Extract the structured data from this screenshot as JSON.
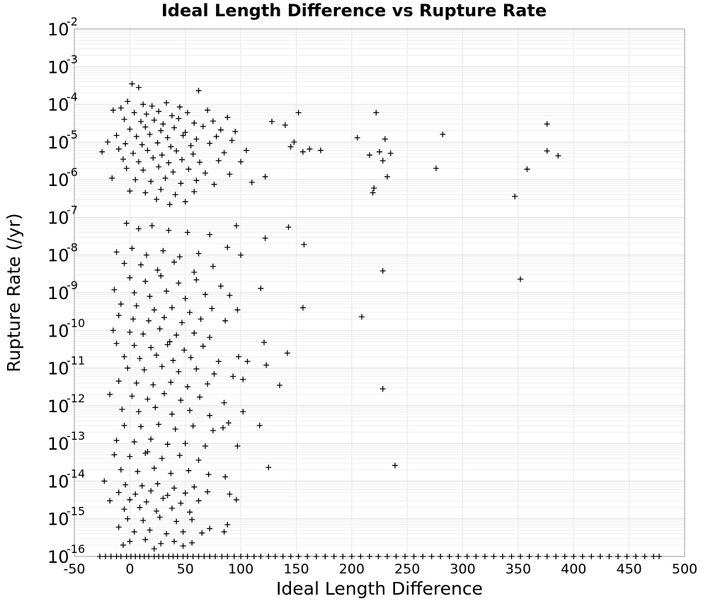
{
  "chart_data": {
    "type": "scatter",
    "title": "Ideal Length Difference vs Rupture Rate",
    "xlabel": "Ideal Length Difference",
    "ylabel": "Rupture Rate (/yr)",
    "xlim": [
      -50,
      500
    ],
    "ylim_log10": [
      -16,
      -2
    ],
    "y_scale": "log",
    "grid": true,
    "marker": "+",
    "xticks": [
      "-50",
      "0",
      "50",
      "100",
      "150",
      "200",
      "250",
      "300",
      "350",
      "400",
      "450",
      "500"
    ],
    "yticks": [
      {
        "base": "10",
        "exp": "-2"
      },
      {
        "base": "10",
        "exp": "-3"
      },
      {
        "base": "10",
        "exp": "-4"
      },
      {
        "base": "10",
        "exp": "-5"
      },
      {
        "base": "10",
        "exp": "-6"
      },
      {
        "base": "10",
        "exp": "-7"
      },
      {
        "base": "10",
        "exp": "-8"
      },
      {
        "base": "10",
        "exp": "-9"
      },
      {
        "base": "10",
        "exp": "-10"
      },
      {
        "base": "10",
        "exp": "-11"
      },
      {
        "base": "10",
        "exp": "-12"
      },
      {
        "base": "10",
        "exp": "-13"
      },
      {
        "base": "10",
        "exp": "-14"
      },
      {
        "base": "10",
        "exp": "-15"
      },
      {
        "base": "10",
        "exp": "-16"
      }
    ],
    "points": [
      [
        2,
        0.00035
      ],
      [
        8,
        0.00028
      ],
      [
        -2,
        0.00012
      ],
      [
        12,
        0.0001
      ],
      [
        20,
        9e-05
      ],
      [
        33,
        0.00011
      ],
      [
        45,
        8.5e-05
      ],
      [
        62,
        0.00023
      ],
      [
        -8,
        8e-05
      ],
      [
        -15,
        7e-05
      ],
      [
        4,
        6e-05
      ],
      [
        15,
        5.5e-05
      ],
      [
        26,
        6.5e-05
      ],
      [
        38,
        5e-05
      ],
      [
        52,
        6e-05
      ],
      [
        70,
        7e-05
      ],
      [
        -5,
        4e-05
      ],
      [
        10,
        3.5e-05
      ],
      [
        22,
        3.8e-05
      ],
      [
        30,
        3e-05
      ],
      [
        44,
        4.2e-05
      ],
      [
        58,
        3.2e-05
      ],
      [
        75,
        3.6e-05
      ],
      [
        88,
        4.5e-05
      ],
      [
        0,
        2.2e-05
      ],
      [
        14,
        2.5e-05
      ],
      [
        28,
        2e-05
      ],
      [
        40,
        2.4e-05
      ],
      [
        50,
        1.8e-05
      ],
      [
        66,
        2.6e-05
      ],
      [
        82,
        2.1e-05
      ],
      [
        95,
        1.9e-05
      ],
      [
        -12,
        1.5e-05
      ],
      [
        6,
        1.4e-05
      ],
      [
        18,
        1.6e-05
      ],
      [
        34,
        1.3e-05
      ],
      [
        48,
        1.5e-05
      ],
      [
        60,
        1.2e-05
      ],
      [
        78,
        1.4e-05
      ],
      [
        92,
        1.1e-05
      ],
      [
        -20,
        1e-05
      ],
      [
        -4,
        9e-06
      ],
      [
        11,
        8.5e-06
      ],
      [
        25,
        9.5e-06
      ],
      [
        37,
        7.5e-06
      ],
      [
        55,
        8e-06
      ],
      [
        72,
        9.2e-06
      ],
      [
        105,
        6e-06
      ],
      [
        -25,
        5.5e-06
      ],
      [
        -10,
        6.5e-06
      ],
      [
        3,
        5e-06
      ],
      [
        16,
        6e-06
      ],
      [
        29,
        4.5e-06
      ],
      [
        42,
        5.8e-06
      ],
      [
        57,
        4.8e-06
      ],
      [
        85,
        5.2e-06
      ],
      [
        -6,
        3.5e-06
      ],
      [
        8,
        3e-06
      ],
      [
        21,
        3.8e-06
      ],
      [
        35,
        2.8e-06
      ],
      [
        47,
        3.4e-06
      ],
      [
        63,
        2.9e-06
      ],
      [
        80,
        3.2e-06
      ],
      [
        100,
        3e-06
      ],
      [
        -3,
        2e-06
      ],
      [
        12,
        1.8e-06
      ],
      [
        26,
        2.2e-06
      ],
      [
        39,
        1.6e-06
      ],
      [
        53,
        1.9e-06
      ],
      [
        68,
        1.5e-06
      ],
      [
        90,
        1.4e-06
      ],
      [
        122,
        1.2e-06
      ],
      [
        -16,
        1.1e-06
      ],
      [
        5,
        1e-06
      ],
      [
        19,
        9e-07
      ],
      [
        32,
        1.1e-06
      ],
      [
        46,
        8e-07
      ],
      [
        60,
        9.5e-07
      ],
      [
        76,
        7.5e-07
      ],
      [
        110,
        8.5e-07
      ],
      [
        0,
        5e-07
      ],
      [
        14,
        4.5e-07
      ],
      [
        28,
        5.5e-07
      ],
      [
        41,
        4e-07
      ],
      [
        58,
        4.8e-07
      ],
      [
        24,
        3e-07
      ],
      [
        50,
        2.6e-07
      ],
      [
        36,
        2.2e-07
      ],
      [
        128,
        3.5e-05
      ],
      [
        140,
        2.8e-05
      ],
      [
        152,
        6e-05
      ],
      [
        148,
        1e-05
      ],
      [
        162,
        6.5e-06
      ],
      [
        145,
        7.5e-06
      ],
      [
        172,
        6e-06
      ],
      [
        156,
        5.5e-06
      ],
      [
        205,
        1.3e-05
      ],
      [
        222,
        6e-05
      ],
      [
        230,
        1.2e-05
      ],
      [
        225,
        5.5e-06
      ],
      [
        235,
        5e-06
      ],
      [
        216,
        4.5e-06
      ],
      [
        228,
        3.2e-06
      ],
      [
        232,
        1.2e-06
      ],
      [
        220,
        6e-07
      ],
      [
        219,
        4.5e-07
      ],
      [
        282,
        1.6e-05
      ],
      [
        276,
        2e-06
      ],
      [
        358,
        1.9e-06
      ],
      [
        376,
        3e-05
      ],
      [
        376,
        5.8e-06
      ],
      [
        386,
        4.3e-06
      ],
      [
        347,
        3.6e-07
      ],
      [
        -3,
        7e-08
      ],
      [
        8,
        5e-08
      ],
      [
        20,
        6e-08
      ],
      [
        35,
        4.5e-08
      ],
      [
        52,
        4e-08
      ],
      [
        72,
        3.5e-08
      ],
      [
        96,
        6e-08
      ],
      [
        122,
        2.8e-08
      ],
      [
        143,
        5.5e-08
      ],
      [
        157,
        1.9e-08
      ],
      [
        -12,
        1.2e-08
      ],
      [
        2,
        1.5e-08
      ],
      [
        15,
        1e-08
      ],
      [
        30,
        1.3e-08
      ],
      [
        45,
        9e-09
      ],
      [
        62,
        1.1e-08
      ],
      [
        88,
        1.6e-08
      ],
      [
        100,
        1e-08
      ],
      [
        -5,
        6e-09
      ],
      [
        10,
        5.5e-09
      ],
      [
        25,
        4e-09
      ],
      [
        40,
        6.5e-09
      ],
      [
        58,
        3.5e-09
      ],
      [
        75,
        5e-09
      ],
      [
        228,
        3.8e-09
      ],
      [
        0,
        2.5e-09
      ],
      [
        14,
        2e-09
      ],
      [
        28,
        2.8e-09
      ],
      [
        44,
        1.8e-09
      ],
      [
        60,
        2.2e-09
      ],
      [
        82,
        1.5e-09
      ],
      [
        352,
        2.3e-09
      ],
      [
        -14,
        1.2e-09
      ],
      [
        4,
        1e-09
      ],
      [
        18,
        8e-10
      ],
      [
        33,
        1.1e-09
      ],
      [
        50,
        7e-10
      ],
      [
        68,
        9e-10
      ],
      [
        118,
        1.3e-09
      ],
      [
        90,
        8.5e-10
      ],
      [
        -8,
        5e-10
      ],
      [
        6,
        4.5e-10
      ],
      [
        22,
        3.5e-10
      ],
      [
        38,
        4e-10
      ],
      [
        54,
        3e-10
      ],
      [
        74,
        3.8e-10
      ],
      [
        156,
        4e-10
      ],
      [
        97,
        3.5e-10
      ],
      [
        -10,
        2.5e-10
      ],
      [
        3,
        2e-10
      ],
      [
        17,
        1.8e-10
      ],
      [
        31,
        2.2e-10
      ],
      [
        47,
        1.6e-10
      ],
      [
        64,
        2e-10
      ],
      [
        209,
        2.3e-10
      ],
      [
        86,
        1.8e-10
      ],
      [
        -15,
        1e-10
      ],
      [
        0,
        9e-11
      ],
      [
        12,
        8e-11
      ],
      [
        27,
        1.1e-10
      ],
      [
        42,
        7.5e-11
      ],
      [
        58,
        8.5e-11
      ],
      [
        72,
        6.5e-11
      ],
      [
        36,
        5e-11
      ],
      [
        -12,
        4.5e-11
      ],
      [
        4,
        4e-11
      ],
      [
        19,
        3.5e-11
      ],
      [
        34,
        4.2e-11
      ],
      [
        49,
        3e-11
      ],
      [
        66,
        3.8e-11
      ],
      [
        121,
        4.8e-11
      ],
      [
        142,
        2.5e-11
      ],
      [
        -5,
        2e-11
      ],
      [
        9,
        1.8e-11
      ],
      [
        24,
        2.2e-11
      ],
      [
        39,
        1.6e-11
      ],
      [
        55,
        1.9e-11
      ],
      [
        80,
        1.5e-11
      ],
      [
        98,
        2e-11
      ],
      [
        106,
        1.5e-11
      ],
      [
        -2,
        1e-11
      ],
      [
        13,
        9e-12
      ],
      [
        29,
        1.1e-11
      ],
      [
        44,
        8e-12
      ],
      [
        60,
        9.5e-12
      ],
      [
        76,
        7e-12
      ],
      [
        123,
        1.2e-11
      ],
      [
        93,
        6e-12
      ],
      [
        -10,
        4.5e-12
      ],
      [
        6,
        4e-12
      ],
      [
        21,
        3.6e-12
      ],
      [
        37,
        4.2e-12
      ],
      [
        52,
        3.2e-12
      ],
      [
        70,
        3.8e-12
      ],
      [
        102,
        5e-12
      ],
      [
        135,
        3.5e-12
      ],
      [
        -18,
        2e-12
      ],
      [
        2,
        1.8e-12
      ],
      [
        16,
        1.5e-12
      ],
      [
        31,
        2.1e-12
      ],
      [
        46,
        1.4e-12
      ],
      [
        63,
        1.7e-12
      ],
      [
        228,
        2.8e-12
      ],
      [
        85,
        1.2e-12
      ],
      [
        -7,
        8e-13
      ],
      [
        8,
        7e-13
      ],
      [
        23,
        9e-13
      ],
      [
        38,
        6e-13
      ],
      [
        54,
        7.5e-13
      ],
      [
        72,
        5.5e-13
      ],
      [
        102,
        7e-13
      ],
      [
        89,
        3.5e-13
      ],
      [
        -5,
        3e-13
      ],
      [
        10,
        2.8e-13
      ],
      [
        26,
        3.2e-13
      ],
      [
        41,
        2.4e-13
      ],
      [
        57,
        2.9e-13
      ],
      [
        75,
        2.2e-13
      ],
      [
        117,
        3e-13
      ],
      [
        84,
        2.6e-13
      ],
      [
        -12,
        1.2e-13
      ],
      [
        4,
        1.1e-13
      ],
      [
        19,
        1.3e-13
      ],
      [
        34,
        9.5e-14
      ],
      [
        50,
        1e-13
      ],
      [
        68,
        8.5e-14
      ],
      [
        97,
        8.5e-14
      ],
      [
        16,
        6e-14
      ],
      [
        -14,
        5e-14
      ],
      [
        0,
        4.5e-14
      ],
      [
        14,
        5.5e-14
      ],
      [
        29,
        4e-14
      ],
      [
        45,
        4.8e-14
      ],
      [
        62,
        3.6e-14
      ],
      [
        239,
        2.6e-14
      ],
      [
        125,
        2.3e-14
      ],
      [
        -8,
        2e-14
      ],
      [
        7,
        1.8e-14
      ],
      [
        22,
        2.2e-14
      ],
      [
        37,
        1.6e-14
      ],
      [
        53,
        1.9e-14
      ],
      [
        71,
        1.5e-14
      ],
      [
        -23,
        1e-14
      ],
      [
        86,
        1.3e-14
      ],
      [
        -4,
        8e-15
      ],
      [
        11,
        7.5e-15
      ],
      [
        25,
        8.5e-15
      ],
      [
        40,
        6.5e-15
      ],
      [
        58,
        7e-15
      ],
      [
        -10,
        5e-15
      ],
      [
        5,
        4.5e-15
      ],
      [
        19,
        5.5e-15
      ],
      [
        34,
        4.2e-15
      ],
      [
        50,
        4.8e-15
      ],
      [
        70,
        5.2e-15
      ],
      [
        90,
        4.5e-15
      ],
      [
        -18,
        3e-15
      ],
      [
        0,
        3.2e-15
      ],
      [
        15,
        2.8e-15
      ],
      [
        30,
        3.5e-15
      ],
      [
        46,
        2.6e-15
      ],
      [
        62,
        3e-15
      ],
      [
        96,
        3.2e-15
      ],
      [
        -5,
        1.8e-15
      ],
      [
        9,
        2e-15
      ],
      [
        24,
        1.6e-15
      ],
      [
        38,
        1.9e-15
      ],
      [
        54,
        1.5e-15
      ],
      [
        -2,
        1e-15
      ],
      [
        12,
        9e-16
      ],
      [
        27,
        1.1e-15
      ],
      [
        42,
        8.5e-16
      ],
      [
        56,
        9.5e-16
      ],
      [
        72,
        5.5e-16
      ],
      [
        88,
        7e-16
      ],
      [
        -10,
        6e-16
      ],
      [
        4,
        4.5e-16
      ],
      [
        18,
        5e-16
      ],
      [
        33,
        4e-16
      ],
      [
        48,
        4.5e-16
      ],
      [
        65,
        4.2e-16
      ],
      [
        85,
        4.5e-16
      ],
      [
        0,
        2.5e-16
      ],
      [
        14,
        2.8e-16
      ],
      [
        28,
        2.2e-16
      ],
      [
        40,
        2.5e-16
      ],
      [
        22,
        1.6e-16
      ],
      [
        48,
        1.9e-16
      ],
      [
        -6,
        2e-16
      ],
      [
        56,
        2.3e-16
      ]
    ],
    "baseline_points": {
      "y": 1e-16,
      "x": [
        -27,
        -22,
        -17,
        -12,
        -8,
        -3,
        1,
        5,
        9,
        13,
        17,
        22,
        26,
        30,
        35,
        39,
        43,
        48,
        52,
        57,
        62,
        67,
        72,
        77,
        83,
        88,
        94,
        100,
        106,
        112,
        118,
        125,
        131,
        138,
        145,
        152,
        160,
        168,
        176,
        184,
        192,
        200,
        208,
        216,
        224,
        232,
        240,
        248,
        256,
        264,
        272,
        280,
        288,
        296,
        304,
        312,
        320,
        328,
        336,
        344,
        352,
        360,
        368,
        376,
        384,
        392,
        400,
        408,
        416,
        424,
        432,
        440,
        448,
        456,
        464,
        472,
        477
      ]
    }
  }
}
